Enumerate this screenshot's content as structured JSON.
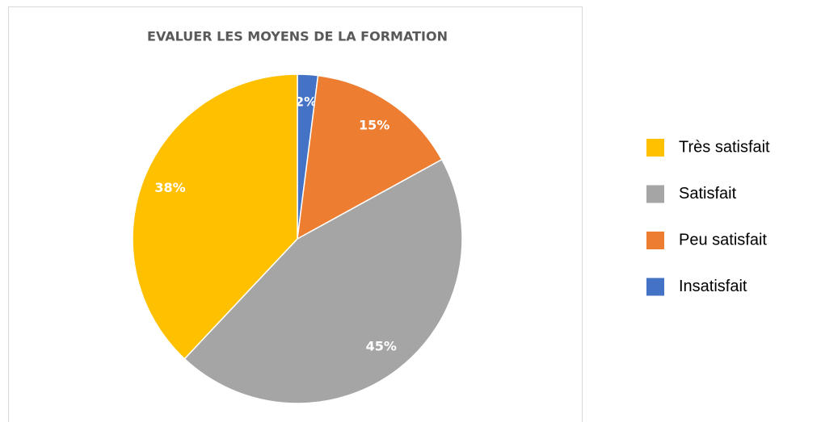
{
  "chart_data": {
    "type": "pie",
    "title": "EVALUER LES MOYENS DE LA FORMATION",
    "categories": [
      "Très satisfait",
      "Satisfait",
      "Peu satisfait",
      "Insatisfait"
    ],
    "values": [
      38,
      45,
      15,
      2
    ],
    "value_labels": [
      "38%",
      "45%",
      "15%",
      "2%"
    ],
    "colors": [
      "#FFC000",
      "#A5A5A5",
      "#ED7D31",
      "#4472C4"
    ],
    "legend": "right"
  }
}
